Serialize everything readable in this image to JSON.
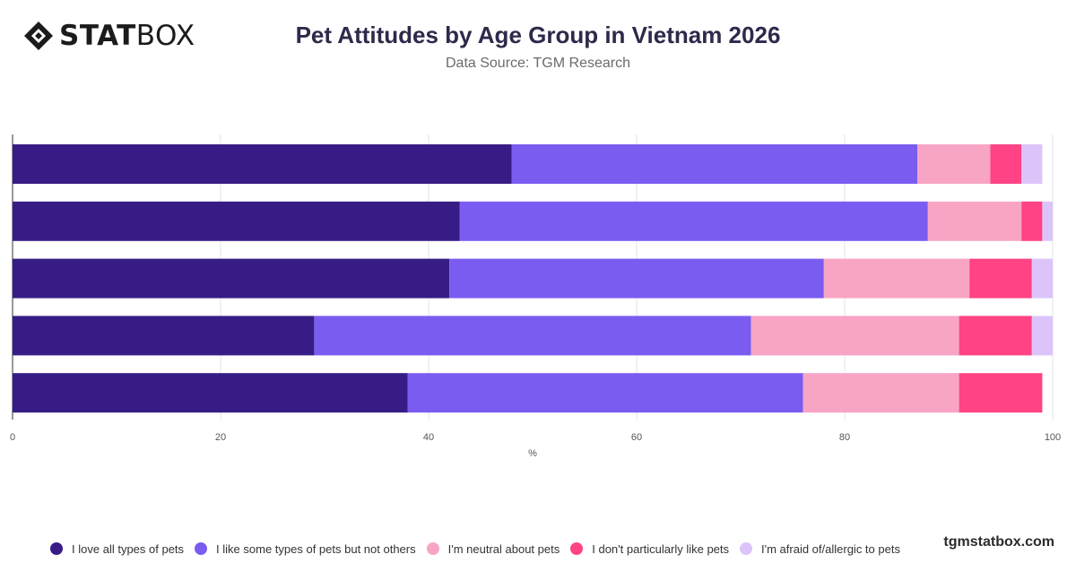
{
  "brand": {
    "logo_text_bold": "STAT",
    "logo_text_light": "BOX",
    "watermark": "tgmstatbox.com",
    "logo_icon": "diamond-logo-icon"
  },
  "header": {
    "title": "Pet Attitudes by Age Group in Vietnam 2026",
    "subtitle": "Data Source: TGM Research"
  },
  "chart_data": {
    "type": "bar",
    "orientation": "horizontal",
    "stacked": true,
    "title": "Pet Attitudes by Age Group in Vietnam 2026",
    "subtitle": "Data Source: TGM Research",
    "xlabel": "%",
    "ylabel": "",
    "xlim": [
      0,
      100
    ],
    "xticks": [
      0,
      20,
      40,
      60,
      80,
      100
    ],
    "grid": true,
    "legend_position": "bottom",
    "categories": [
      "",
      "",
      "",
      "",
      ""
    ],
    "series": [
      {
        "name": "I love all types of pets",
        "color": "#371c85",
        "values": [
          48,
          43,
          42,
          29,
          38
        ]
      },
      {
        "name": "I like some types of pets but not others",
        "color": "#7b5cf0",
        "values": [
          39,
          45,
          36,
          42,
          38
        ]
      },
      {
        "name": "I'm neutral about pets",
        "color": "#f8a4c5",
        "values": [
          7,
          9,
          14,
          20,
          15
        ]
      },
      {
        "name": "I don't particularly like pets",
        "color": "#ff4384",
        "values": [
          3,
          2,
          6,
          7,
          8
        ]
      },
      {
        "name": "I'm afraid of/allergic to pets",
        "color": "#dcc4fb",
        "values": [
          2,
          1,
          2,
          2,
          0
        ]
      }
    ]
  }
}
